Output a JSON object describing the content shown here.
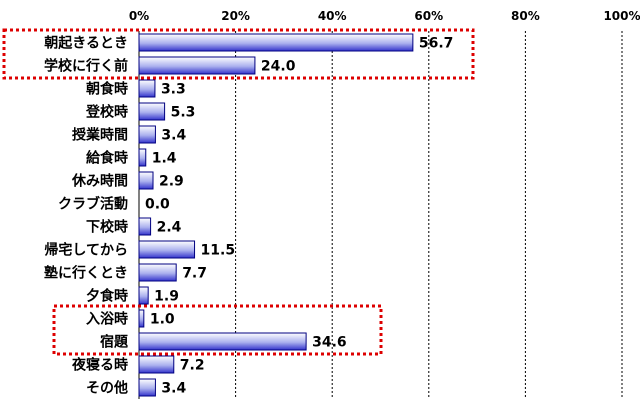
{
  "chart_data": {
    "type": "bar",
    "orientation": "horizontal",
    "x_ticks": [
      "0%",
      "20%",
      "40%",
      "60%",
      "80%",
      "100%"
    ],
    "xlim": [
      0,
      100
    ],
    "categories": [
      "朝起きるとき",
      "学校に行く前",
      "朝食時",
      "登校時",
      "授業時間",
      "給食時",
      "休み時間",
      "クラブ活動",
      "下校時",
      "帰宅してから",
      "塾に行くとき",
      "夕食時",
      "入浴時",
      "宿題",
      "夜寝る時",
      "その他"
    ],
    "values": [
      56.7,
      24.0,
      3.3,
      5.3,
      3.4,
      1.4,
      2.9,
      0.0,
      2.4,
      11.5,
      7.7,
      1.9,
      1.0,
      34.6,
      7.2,
      3.4
    ],
    "value_labels": [
      "56.7",
      "24.0",
      "3.3",
      "5.3",
      "3.4",
      "1.4",
      "2.9",
      "0.0",
      "2.4",
      "11.5",
      "7.7",
      "1.9",
      "1.0",
      "34.6",
      "7.2",
      "3.4"
    ],
    "highlighted_groups": [
      [
        0,
        1
      ],
      [
        12,
        13
      ]
    ],
    "grid": "vertical-dashed",
    "colors": {
      "bar_fill_light": "#ffffff",
      "bar_fill_dark": "#3333cc",
      "bar_stroke": "#000080",
      "highlight": "#dd0000"
    }
  }
}
